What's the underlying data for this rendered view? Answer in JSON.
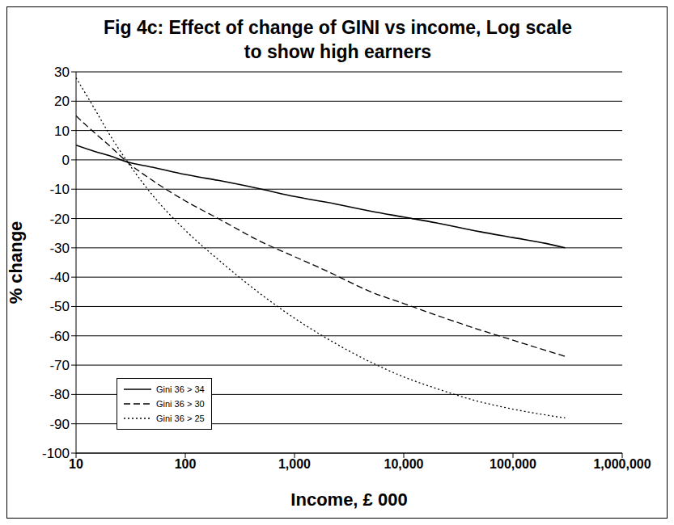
{
  "chart_data": {
    "type": "line",
    "title": "Fig 4c: Effect of change of GINI vs income, Log scale to show high earners",
    "x_label": "Income, £ 000",
    "y_label": "% change",
    "log": "x",
    "grid": true,
    "legend": "lower left",
    "x": [
      10,
      15,
      20,
      30,
      50,
      100,
      200,
      500,
      1000,
      2000,
      5000,
      10000,
      20000,
      50000,
      100000,
      200000,
      300000
    ],
    "series": [
      {
        "name": "Gini 36 > 34",
        "color": "#000000",
        "line_style": "solid",
        "values": [
          5,
          2.8,
          1.5,
          -0.8,
          -2.5,
          -5,
          -7,
          -10,
          -12.5,
          -14.5,
          -17.5,
          -19.5,
          -21.5,
          -24.5,
          -26.5,
          -28.5,
          -30
        ]
      },
      {
        "name": "Gini 36 > 30",
        "color": "#000000",
        "line_style": "dashed",
        "values": [
          15,
          9,
          5,
          -1,
          -7,
          -14,
          -20,
          -28,
          -33,
          -38,
          -45,
          -49,
          -53,
          -58,
          -61.5,
          -65,
          -67
        ]
      },
      {
        "name": "Gini 36 > 25",
        "color": "#000000",
        "line_style": "dotted",
        "values": [
          28,
          17,
          9,
          -1,
          -12,
          -24,
          -34,
          -46,
          -54,
          -61,
          -69,
          -74,
          -78,
          -82.5,
          -85,
          -87,
          -88
        ]
      }
    ],
    "xlim": [
      10,
      1000000
    ],
    "xticks": [
      10,
      100,
      {
        "value": 1000,
        "label": "1,000"
      },
      {
        "value": 10000,
        "label": "10,000"
      },
      {
        "value": 100000,
        "label": "100,000"
      },
      {
        "value": 1000000,
        "label": "1,000,000"
      }
    ],
    "ylim": [
      -100,
      30
    ],
    "yticks": [
      -100,
      -90,
      -80,
      -70,
      -60,
      -50,
      -40,
      -30,
      -20,
      -10,
      0,
      10,
      20,
      30
    ]
  }
}
